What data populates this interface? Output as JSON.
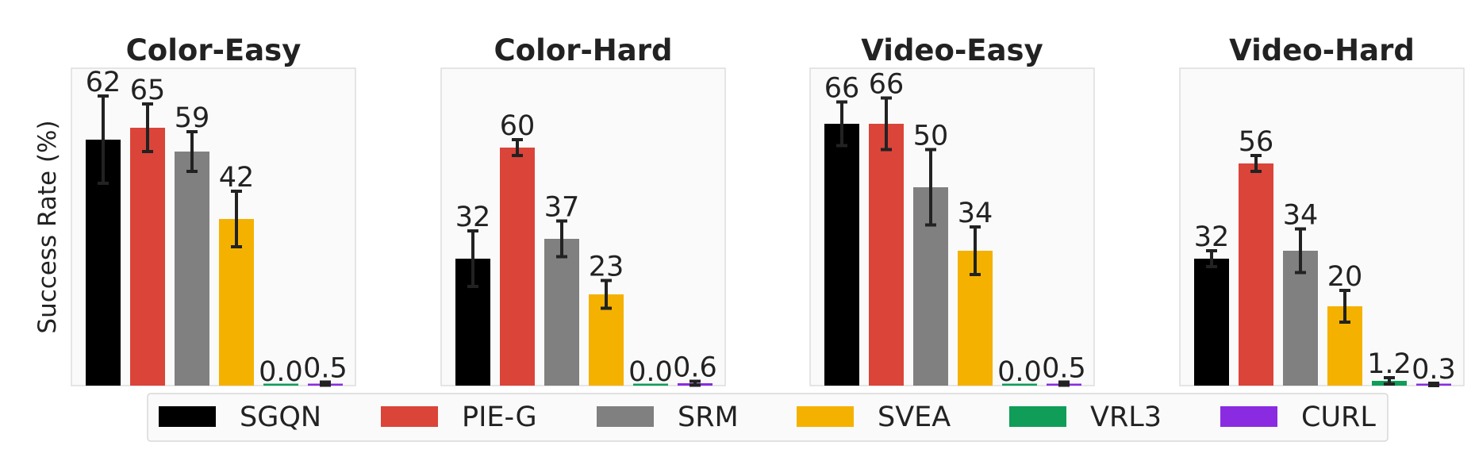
{
  "chart_data": {
    "type": "bar",
    "ylabel": "Success Rate (%)",
    "ylim": [
      0,
      80
    ],
    "grid": false,
    "legend_position": "bottom",
    "series": [
      {
        "name": "SGQN",
        "color": "#000000"
      },
      {
        "name": "PIE-G",
        "color": "#db4439"
      },
      {
        "name": "SRM",
        "color": "#808080"
      },
      {
        "name": "SVEA",
        "color": "#f5b100"
      },
      {
        "name": "VRL3",
        "color": "#0f9d58"
      },
      {
        "name": "CURL",
        "color": "#8a2be2"
      }
    ],
    "panels": [
      {
        "title": "Color-Easy",
        "values": [
          62,
          65,
          59,
          42,
          0.0,
          0.5
        ],
        "labels": [
          "62",
          "65",
          "59",
          "42",
          "0.0",
          "0.5"
        ],
        "error": [
          11,
          6,
          5,
          7,
          0,
          0.4
        ]
      },
      {
        "title": "Color-Hard",
        "values": [
          32,
          60,
          37,
          23,
          0.0,
          0.6
        ],
        "labels": [
          "32",
          "60",
          "37",
          "23",
          "0.0",
          "0.6"
        ],
        "error": [
          7,
          2,
          4.5,
          3.5,
          0,
          0.5
        ]
      },
      {
        "title": "Video-Easy",
        "values": [
          66,
          66,
          50,
          34,
          0.0,
          0.5
        ],
        "labels": [
          "66",
          "66",
          "50",
          "34",
          "0.0",
          "0.5"
        ],
        "error": [
          5.5,
          6.5,
          9.5,
          6,
          0,
          0.4
        ]
      },
      {
        "title": "Video-Hard",
        "values": [
          32,
          56,
          34,
          20,
          1.2,
          0.3
        ],
        "labels": [
          "32",
          "56",
          "34",
          "20",
          "1.2",
          "0.3"
        ],
        "error": [
          2,
          2,
          5.5,
          4,
          0.8,
          0.3
        ]
      }
    ]
  }
}
